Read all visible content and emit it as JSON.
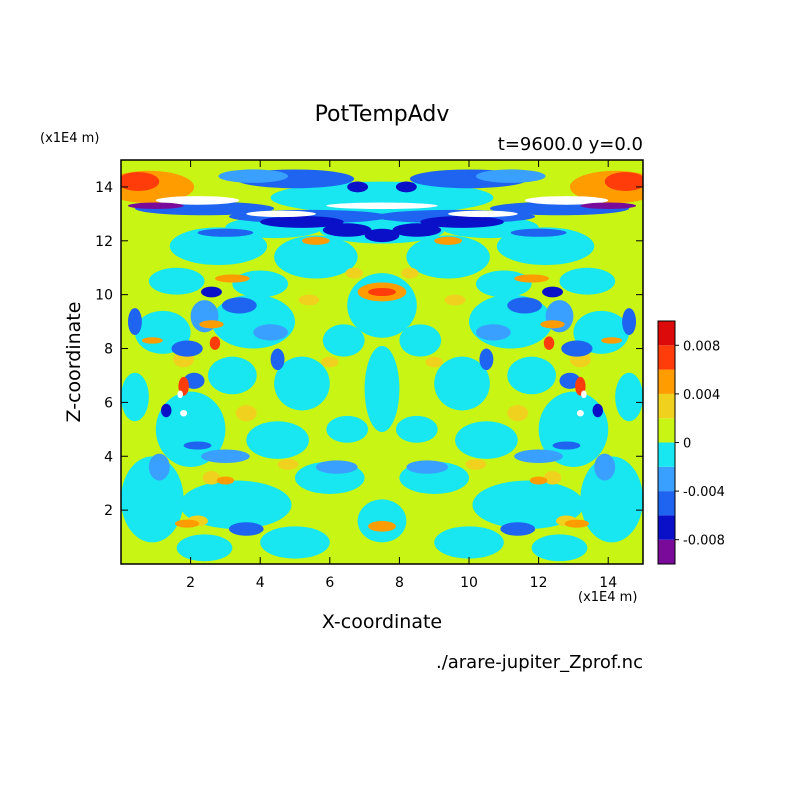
{
  "chart_data": {
    "type": "heatmap",
    "title": "PotTempAdv",
    "subtitle": "t=9600.0 y=0.0",
    "xlabel": "X-coordinate",
    "ylabel": "Z-coordinate",
    "x_units": "(x1E4 m)",
    "y_units": "(x1E4 m)",
    "source": "./arare-jupiter_Zprof.nc",
    "xlim": [
      0,
      15
    ],
    "ylim": [
      0,
      15
    ],
    "x_ticks": [
      2,
      4,
      6,
      8,
      10,
      12,
      14
    ],
    "y_ticks": [
      2,
      4,
      6,
      8,
      10,
      12,
      14
    ],
    "colorbar": {
      "levels": [
        -0.01,
        -0.008,
        -0.006,
        -0.004,
        -0.002,
        0,
        0.002,
        0.004,
        0.006,
        0.008,
        0.01
      ],
      "colors": [
        "#7a0a9a",
        "#0a10c8",
        "#1e64f0",
        "#3aa0ff",
        "#18e6f0",
        "#c8f514",
        "#f0d21e",
        "#ff9c00",
        "#ff3c0a",
        "#dc0a0a",
        "#ffb4bc"
      ],
      "tick_labels": [
        "0.008",
        "0.004",
        "0",
        "-0.004",
        "-0.008"
      ],
      "tick_values": [
        0.008,
        0.004,
        0,
        -0.004,
        -0.008
      ]
    },
    "symmetry": "mirror-symmetric about x=7.5",
    "grid": false
  }
}
